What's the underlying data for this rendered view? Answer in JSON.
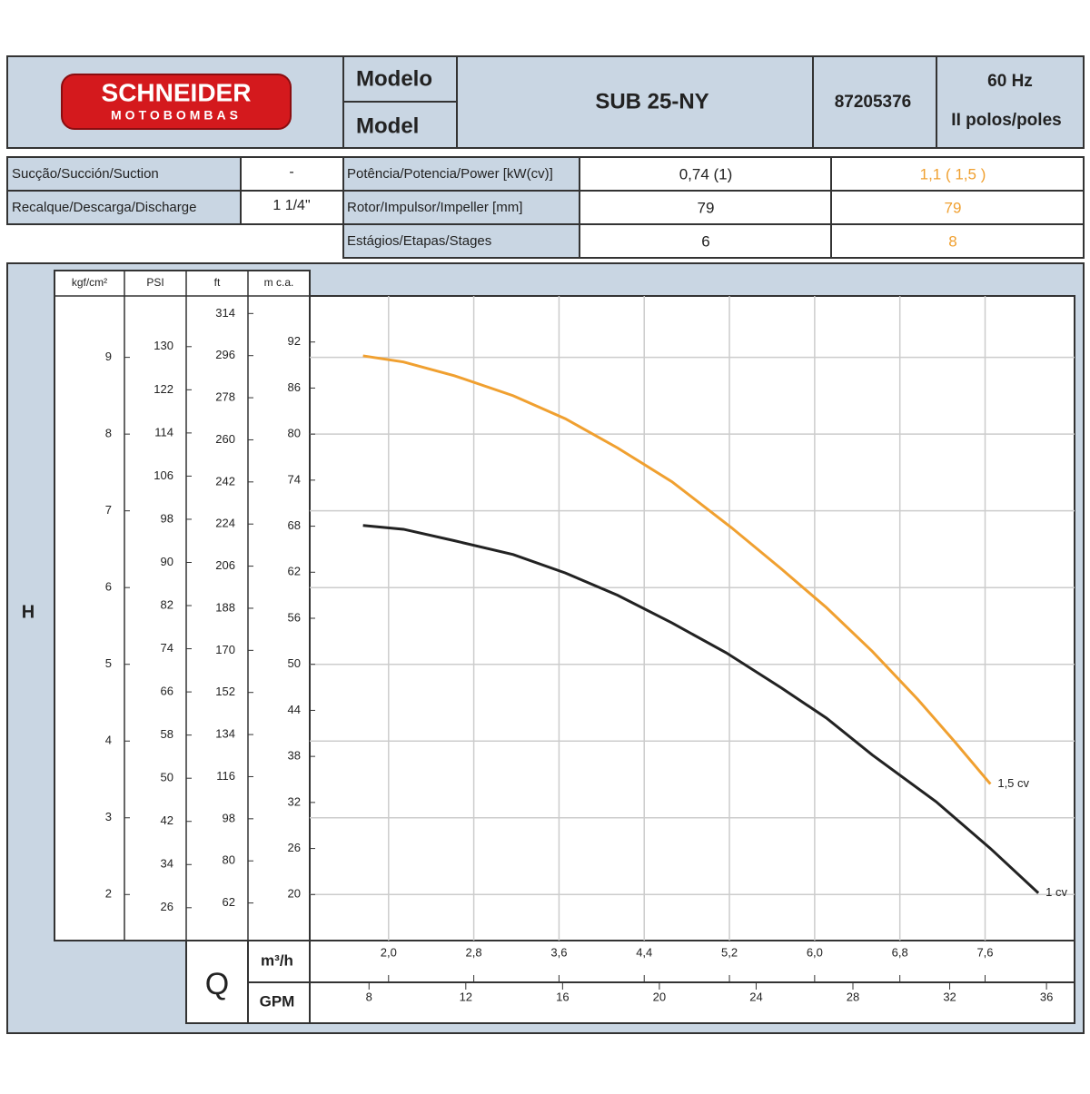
{
  "header": {
    "brand": "SCHNEIDER",
    "brand_sub": "MOTOBOMBAS",
    "model_pt": "Modelo",
    "model_en": "Model",
    "model": "SUB 25-NY",
    "code": "87205376",
    "frequency": "60 Hz",
    "poles": "II polos/poles"
  },
  "specs": {
    "left": [
      [
        "Sucção/Succión/Suction",
        "-"
      ],
      [
        "Recalque/Descarga/Discharge",
        "1 1/4\""
      ]
    ],
    "right": [
      [
        "Potência/Potencia/Power [kW(cv)]",
        "0,74 (1)",
        "1,1 ( 1,5 )"
      ],
      [
        "Rotor/Impulsor/Impeller [mm]",
        "79",
        "79"
      ],
      [
        "Estágios/Etapas/Stages",
        "6",
        "8"
      ]
    ]
  },
  "chart_data": {
    "type": "line",
    "y_title": "H",
    "x_title": "Q",
    "xlim": [
      1.26,
      8.44
    ],
    "x_label": "m³/h",
    "xticks": [
      {
        "value": 2.0,
        "label": "2,0"
      },
      {
        "value": 2.8,
        "label": "2,8"
      },
      {
        "value": 3.6,
        "label": "3,6"
      },
      {
        "value": 4.4,
        "label": "4,4"
      },
      {
        "value": 5.2,
        "label": "5,2"
      },
      {
        "value": 6.0,
        "label": "6,0"
      },
      {
        "value": 6.8,
        "label": "6,8"
      },
      {
        "value": 7.6,
        "label": "7,6"
      }
    ],
    "x2lim": [
      5.55,
      37.16
    ],
    "x2_label": "GPM",
    "x2ticks": [
      8,
      12,
      16,
      20,
      24,
      28,
      32,
      36
    ],
    "ylim": [
      14,
      98
    ],
    "y_label": "m c.a.",
    "yticks": [
      20,
      26,
      32,
      38,
      44,
      50,
      56,
      62,
      68,
      74,
      80,
      86,
      92
    ],
    "extra_y_axes": [
      {
        "label": "kgf/cm²",
        "lim": [
          1.4,
          9.8
        ],
        "ticks": [
          2,
          3,
          4,
          5,
          6,
          7,
          8,
          9
        ]
      },
      {
        "label": "PSI",
        "lim": [
          19.91,
          139.39
        ],
        "ticks": [
          26,
          34,
          42,
          50,
          58,
          66,
          74,
          82,
          90,
          98,
          106,
          114,
          122,
          130
        ]
      },
      {
        "label": "ft",
        "lim": [
          45.93,
          321.5
        ],
        "ticks": [
          62,
          80,
          98,
          116,
          134,
          152,
          170,
          188,
          206,
          224,
          242,
          260,
          278,
          296,
          314
        ]
      }
    ],
    "grid": true,
    "series": [
      {
        "name": "1,5 cv",
        "color": "#f0a030",
        "x": [
          1.76,
          2.14,
          2.62,
          3.17,
          3.66,
          4.15,
          4.66,
          5.22,
          5.69,
          6.11,
          6.54,
          6.97,
          7.31,
          7.65
        ],
        "values": [
          90.2,
          89.4,
          87.6,
          85.0,
          82.0,
          78.2,
          73.8,
          67.8,
          62.4,
          57.4,
          51.7,
          45.4,
          40.0,
          34.4
        ]
      },
      {
        "name": "1 cv",
        "color": "#222222",
        "x": [
          1.76,
          2.14,
          2.62,
          3.17,
          3.66,
          4.15,
          4.66,
          5.17,
          5.69,
          6.11,
          6.54,
          7.14,
          7.65,
          8.1
        ],
        "values": [
          68.1,
          67.6,
          66.1,
          64.3,
          61.9,
          59.0,
          55.4,
          51.5,
          46.9,
          43.0,
          38.2,
          32.1,
          26.0,
          20.2
        ]
      }
    ]
  }
}
